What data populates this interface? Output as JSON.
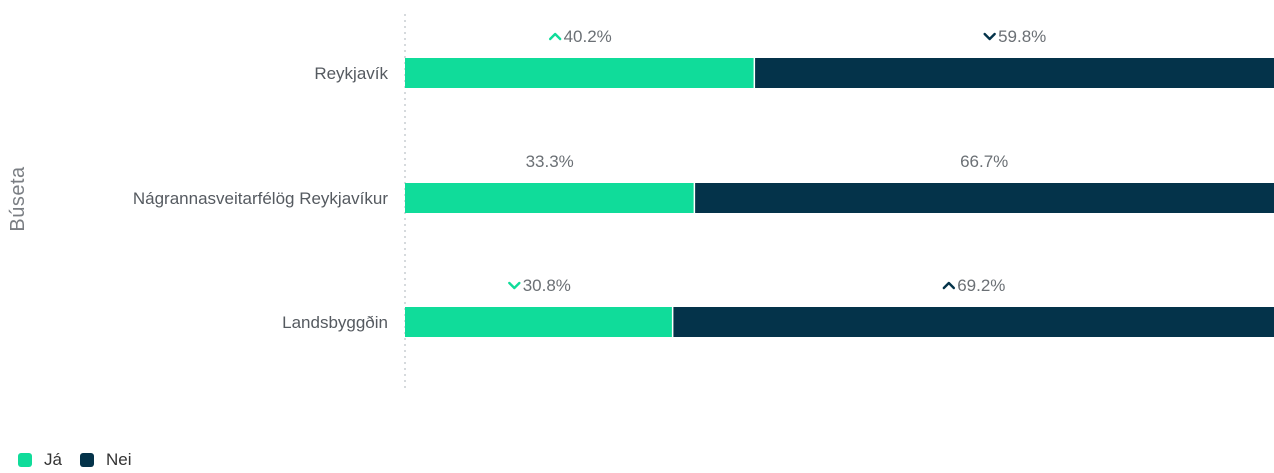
{
  "chart_data": {
    "type": "bar",
    "orientation": "horizontal",
    "stacked": "percent",
    "axis_title": "Búseta",
    "categories": [
      "Reykjavík",
      "Nágrannasveitarfélög Reykjavíkur",
      "Landsbyggðin"
    ],
    "series": [
      {
        "name": "Já",
        "color": "#10dc9a",
        "values": [
          40.2,
          33.3,
          30.8
        ],
        "labels": [
          "40.2%",
          "33.3%",
          "30.8%"
        ],
        "trend": [
          "up",
          "none",
          "down"
        ]
      },
      {
        "name": "Nei",
        "color": "#04334a",
        "values": [
          59.8,
          66.7,
          69.2
        ],
        "labels": [
          "59.8%",
          "66.7%",
          "69.2%"
        ],
        "trend": [
          "down",
          "none",
          "up"
        ]
      }
    ],
    "xlim": [
      0,
      100
    ],
    "grid": false,
    "legend_position": "bottom-left"
  }
}
